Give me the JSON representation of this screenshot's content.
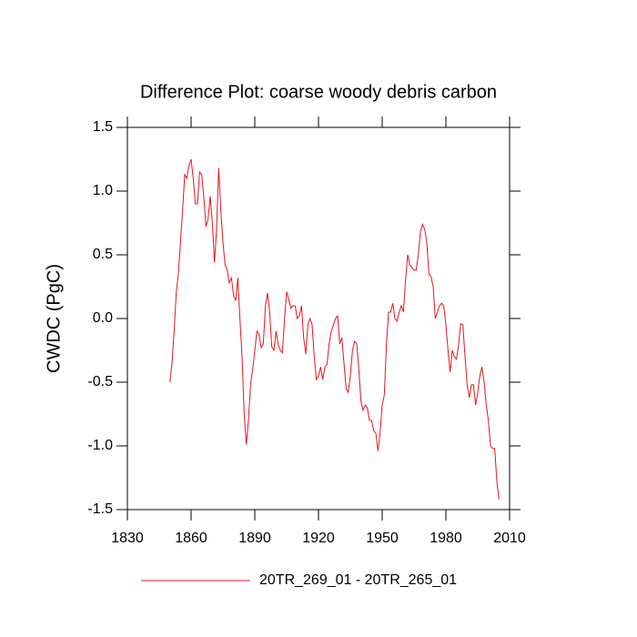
{
  "chart_data": {
    "type": "line",
    "title": "Difference Plot: coarse woody debris carbon",
    "y_label": "CWDC  (PgC)",
    "xlim": [
      1830,
      2010
    ],
    "xticks": [
      1830,
      1860,
      1890,
      1920,
      1950,
      1980,
      2010
    ],
    "ylim": [
      -1.5,
      1.5
    ],
    "yticks": [
      -1.5,
      {
        "value": -1.0,
        "label": "-1.0"
      },
      -0.5,
      {
        "value": 0.0,
        "label": "0.0"
      },
      0.5,
      {
        "value": 1.0,
        "label": "1.0"
      },
      1.5
    ],
    "x": [
      1850,
      1851,
      1852,
      1853,
      1854,
      1855,
      1856,
      1857,
      1858,
      1859,
      1860,
      1861,
      1862,
      1863,
      1864,
      1865,
      1866,
      1867,
      1868,
      1869,
      1870,
      1871,
      1872,
      1873,
      1874,
      1875,
      1876,
      1877,
      1878,
      1879,
      1880,
      1881,
      1882,
      1883,
      1884,
      1885,
      1886,
      1887,
      1888,
      1889,
      1890,
      1891,
      1892,
      1893,
      1894,
      1895,
      1896,
      1897,
      1898,
      1899,
      1900,
      1901,
      1902,
      1903,
      1904,
      1905,
      1906,
      1907,
      1908,
      1909,
      1910,
      1911,
      1912,
      1913,
      1914,
      1915,
      1916,
      1917,
      1918,
      1919,
      1920,
      1921,
      1922,
      1923,
      1924,
      1925,
      1926,
      1927,
      1928,
      1929,
      1930,
      1931,
      1932,
      1933,
      1934,
      1935,
      1936,
      1937,
      1938,
      1939,
      1940,
      1941,
      1942,
      1943,
      1944,
      1945,
      1946,
      1947,
      1948,
      1949,
      1950,
      1951,
      1952,
      1953,
      1954,
      1955,
      1956,
      1957,
      1958,
      1959,
      1960,
      1961,
      1962,
      1963,
      1964,
      1965,
      1966,
      1967,
      1968,
      1969,
      1970,
      1971,
      1972,
      1973,
      1974,
      1975,
      1976,
      1977,
      1978,
      1979,
      1980,
      1981,
      1982,
      1983,
      1984,
      1985,
      1986,
      1987,
      1988,
      1989,
      1990,
      1991,
      1992,
      1993,
      1994,
      1995,
      1996,
      1997,
      1998,
      1999,
      2000,
      2001,
      2002,
      2003,
      2004,
      2005
    ],
    "series": [
      {
        "name": "20TR_269_01 - 20TR_265_01",
        "color": "#e8141c",
        "values": [
          -0.5,
          -0.35,
          -0.1,
          0.2,
          0.35,
          0.6,
          0.85,
          1.13,
          1.1,
          1.2,
          1.25,
          1.1,
          0.9,
          0.9,
          1.15,
          1.13,
          0.95,
          0.72,
          0.78,
          0.96,
          0.75,
          0.44,
          0.7,
          1.18,
          0.85,
          0.6,
          0.42,
          0.38,
          0.28,
          0.32,
          0.18,
          0.14,
          0.32,
          0.0,
          -0.3,
          -0.75,
          -0.99,
          -0.8,
          -0.52,
          -0.4,
          -0.25,
          -0.1,
          -0.12,
          -0.23,
          -0.2,
          0.1,
          0.2,
          0.05,
          -0.22,
          -0.25,
          -0.1,
          -0.2,
          -0.25,
          -0.27,
          0.0,
          0.21,
          0.15,
          0.08,
          0.1,
          0.1,
          0.0,
          0.02,
          0.1,
          -0.15,
          -0.28,
          -0.05,
          0.0,
          -0.05,
          -0.3,
          -0.48,
          -0.45,
          -0.38,
          -0.48,
          -0.38,
          -0.36,
          -0.2,
          -0.1,
          -0.05,
          0.0,
          0.02,
          -0.2,
          -0.15,
          -0.35,
          -0.55,
          -0.58,
          -0.45,
          -0.25,
          -0.18,
          -0.2,
          -0.4,
          -0.65,
          -0.72,
          -0.68,
          -0.7,
          -0.8,
          -0.8,
          -0.88,
          -0.9,
          -1.04,
          -0.9,
          -0.68,
          -0.6,
          -0.2,
          0.05,
          0.05,
          0.12,
          0.0,
          -0.02,
          0.05,
          0.1,
          0.05,
          0.3,
          0.5,
          0.42,
          0.4,
          0.38,
          0.38,
          0.5,
          0.68,
          0.74,
          0.7,
          0.6,
          0.35,
          0.33,
          0.25,
          0.0,
          0.05,
          0.1,
          0.12,
          0.1,
          -0.05,
          -0.25,
          -0.42,
          -0.25,
          -0.3,
          -0.32,
          -0.2,
          -0.04,
          -0.05,
          -0.3,
          -0.52,
          -0.62,
          -0.52,
          -0.52,
          -0.68,
          -0.58,
          -0.45,
          -0.38,
          -0.5,
          -0.68,
          -0.8,
          -1.0,
          -1.02,
          -1.02,
          -1.28,
          -1.42
        ]
      }
    ]
  }
}
